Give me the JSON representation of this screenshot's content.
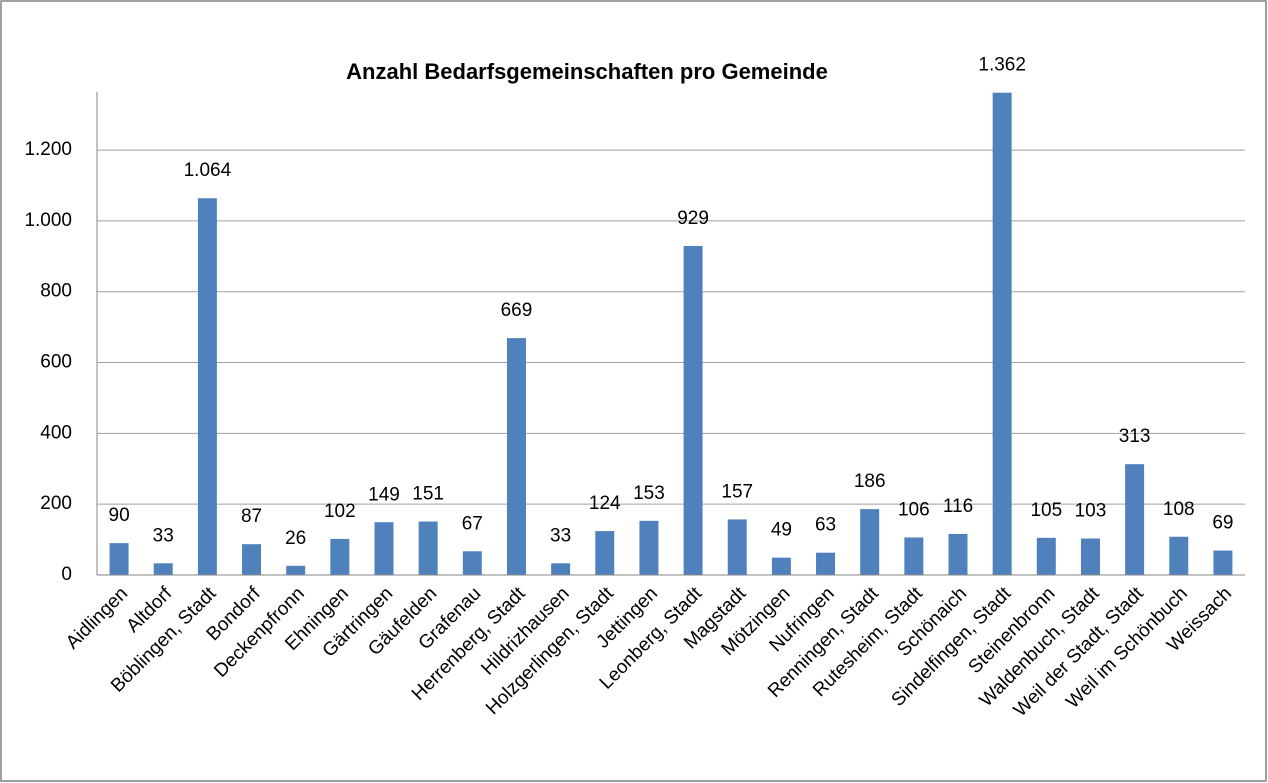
{
  "chart_data": {
    "type": "bar",
    "title": "Anzahl Bedarfsgemeinschaften pro Gemeinde",
    "categories": [
      "Aidlingen",
      "Altdorf",
      "Böblingen, Stadt",
      "Bondorf",
      "Deckenpfronn",
      "Ehningen",
      "Gärtringen",
      "Gäufelden",
      "Grafenau",
      "Herrenberg, Stadt",
      "Hildrizhausen",
      "Holzgerlingen, Stadt",
      "Jettingen",
      "Leonberg, Stadt",
      "Magstadt",
      "Mötzingen",
      "Nufringen",
      "Renningen, Stadt",
      "Rutesheim, Stadt",
      "Schönaich",
      "Sindelfingen, Stadt",
      "Steinenbronn",
      "Waldenbuch, Stadt",
      "Weil der Stadt, Stadt",
      "Weil im Schönbuch",
      "Weissach"
    ],
    "values": [
      90,
      33,
      1064,
      87,
      26,
      102,
      149,
      151,
      67,
      669,
      33,
      124,
      153,
      929,
      157,
      49,
      63,
      186,
      106,
      116,
      1362,
      105,
      103,
      313,
      108,
      69
    ],
    "value_labels": [
      "90",
      "33",
      "1.064",
      "87",
      "26",
      "102",
      "149",
      "151",
      "67",
      "669",
      "33",
      "124",
      "153",
      "929",
      "157",
      "49",
      "63",
      "186",
      "106",
      "116",
      "1.362",
      "105",
      "103",
      "313",
      "108",
      "69"
    ],
    "color": "#4f81bd",
    "ylim": [
      0,
      1364
    ],
    "yticks": [
      0,
      200,
      400,
      600,
      800,
      {
        "value": 1000,
        "label": "1.000"
      },
      {
        "value": 1200,
        "label": "1.200"
      }
    ],
    "grid": true
  }
}
